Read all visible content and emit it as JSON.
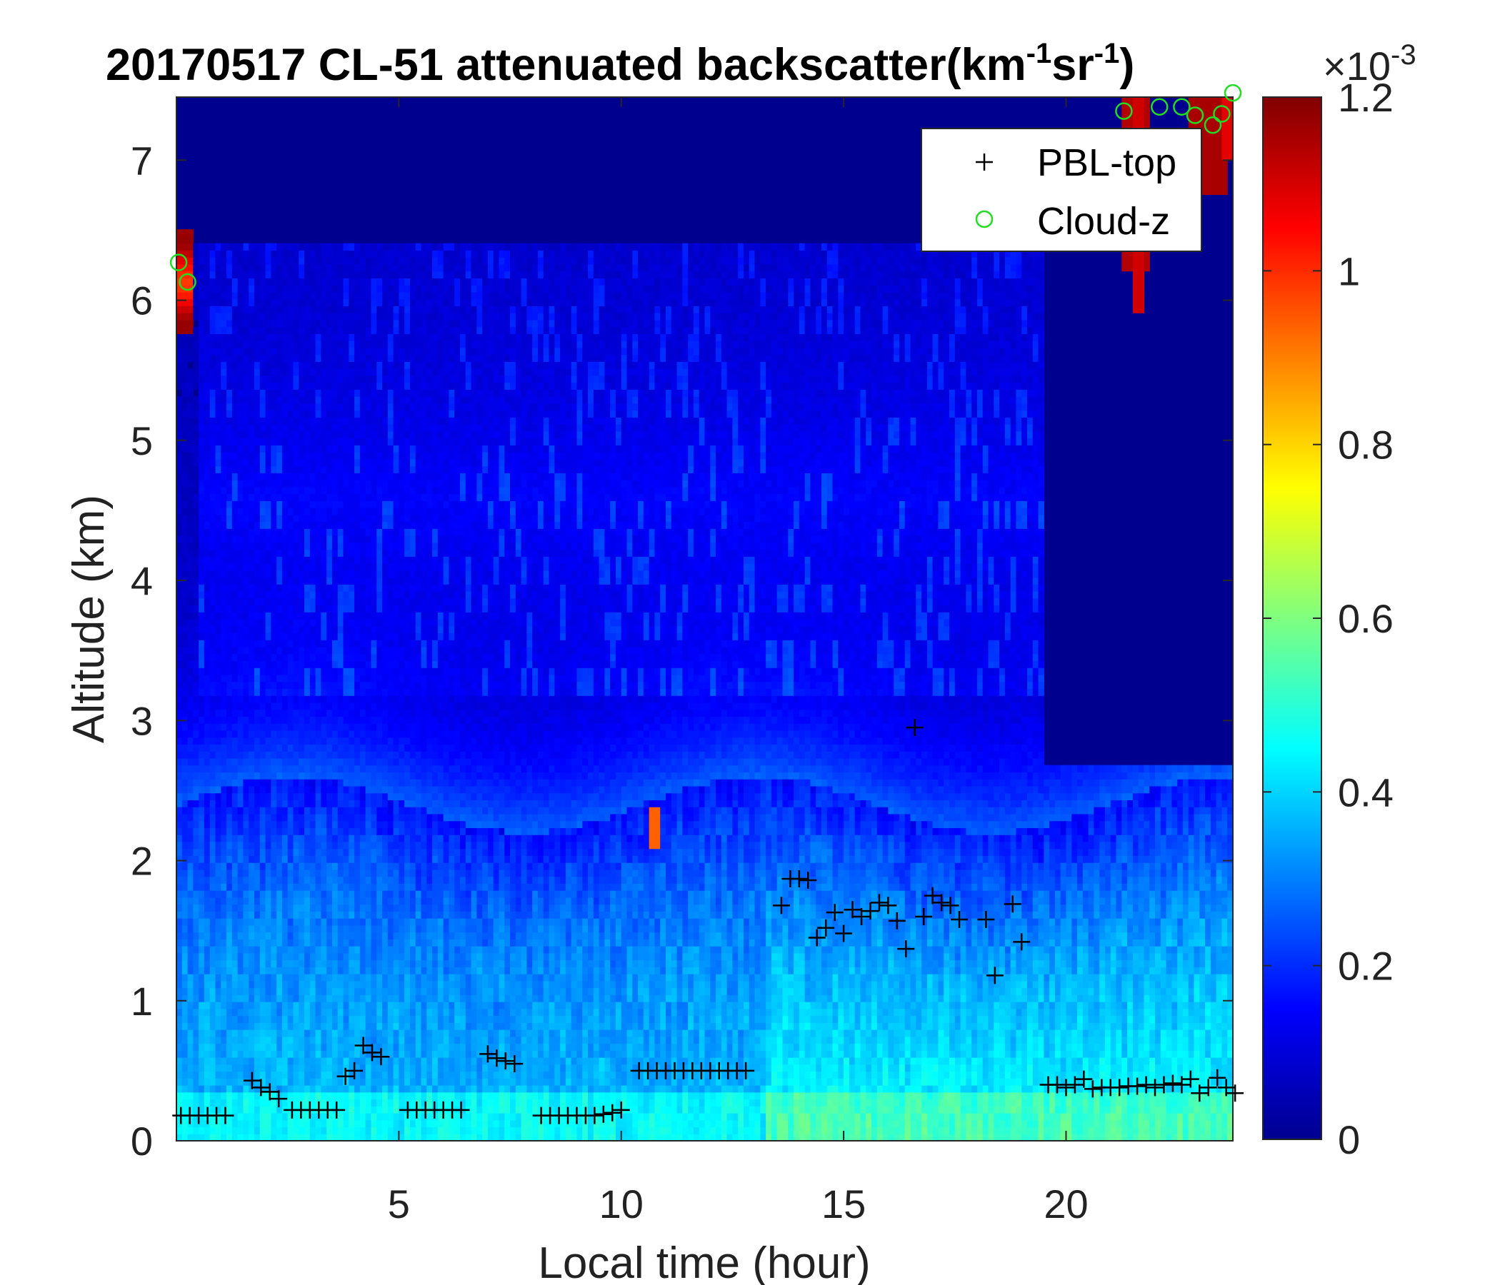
{
  "chart_data": {
    "type": "heatmap",
    "title": {
      "main": "20170517  CL-51 attenuated backscatter(km",
      "sup1": "-1",
      "mid": "sr",
      "sup2": "-1",
      "end": ")"
    },
    "xlabel": "Local time (hour)",
    "ylabel": "Altitude (km)",
    "xlim": [
      0,
      23.75
    ],
    "ylim": [
      0,
      7.45
    ],
    "xticks": [
      5,
      10,
      15,
      20
    ],
    "yticks": [
      0,
      1,
      2,
      3,
      4,
      5,
      6,
      7
    ],
    "colorbar": {
      "colormap": "jet",
      "clim": [
        0,
        1.2
      ],
      "ticks": [
        0,
        0.2,
        0.4,
        0.6,
        0.8,
        1,
        1.2
      ],
      "tick_labels": [
        "0",
        "0.2",
        "0.4",
        "0.6",
        "0.8",
        "1",
        "1.2"
      ],
      "exponent_prefix": "×10",
      "exponent": "-3"
    },
    "legend": {
      "position": "top-right",
      "entries": [
        {
          "label": "PBL-top",
          "marker": "+",
          "color": "#000000"
        },
        {
          "label": "Cloud-z",
          "marker": "o",
          "color": "#22dd22"
        }
      ]
    },
    "series": [
      {
        "name": "PBL-top",
        "marker": "+",
        "color": "#000000",
        "x": [
          0.1,
          0.3,
          0.5,
          0.7,
          0.9,
          1.1,
          1.7,
          1.9,
          2.1,
          2.3,
          2.6,
          2.8,
          3.0,
          3.2,
          3.4,
          3.6,
          3.8,
          4.0,
          4.2,
          4.4,
          4.6,
          5.2,
          5.4,
          5.6,
          5.8,
          6.0,
          6.2,
          6.4,
          7.0,
          7.2,
          7.4,
          7.6,
          8.2,
          8.4,
          8.6,
          8.8,
          9.0,
          9.2,
          9.4,
          9.6,
          9.8,
          10.0,
          10.4,
          10.6,
          10.8,
          11.0,
          11.2,
          11.4,
          11.6,
          11.8,
          12.0,
          12.2,
          12.4,
          12.6,
          12.8,
          13.6,
          13.8,
          14.0,
          14.2,
          14.4,
          14.6,
          14.8,
          15.0,
          15.2,
          15.4,
          15.6,
          15.8,
          16.0,
          16.2,
          16.4,
          16.6,
          16.8,
          17.0,
          17.2,
          17.4,
          17.6,
          18.2,
          18.4,
          18.8,
          19.0,
          19.6,
          19.8,
          20.0,
          20.2,
          20.4,
          20.6,
          20.8,
          21.0,
          21.2,
          21.4,
          21.6,
          21.8,
          22.0,
          22.2,
          22.4,
          22.6,
          22.8,
          23.0,
          23.2,
          23.4,
          23.6,
          23.8
        ],
        "y": [
          0.18,
          0.18,
          0.18,
          0.18,
          0.18,
          0.18,
          0.43,
          0.38,
          0.35,
          0.3,
          0.22,
          0.22,
          0.22,
          0.22,
          0.22,
          0.22,
          0.46,
          0.5,
          0.68,
          0.63,
          0.6,
          0.22,
          0.22,
          0.22,
          0.22,
          0.22,
          0.22,
          0.22,
          0.62,
          0.59,
          0.57,
          0.55,
          0.18,
          0.18,
          0.18,
          0.18,
          0.18,
          0.18,
          0.18,
          0.19,
          0.2,
          0.22,
          0.5,
          0.5,
          0.5,
          0.5,
          0.5,
          0.5,
          0.5,
          0.5,
          0.5,
          0.5,
          0.5,
          0.5,
          0.5,
          1.68,
          1.87,
          1.87,
          1.86,
          1.45,
          1.52,
          1.63,
          1.48,
          1.65,
          1.6,
          1.64,
          1.7,
          1.68,
          1.57,
          1.37,
          2.95,
          1.6,
          1.75,
          1.7,
          1.68,
          1.58,
          1.58,
          1.18,
          1.69,
          1.42,
          0.4,
          0.4,
          0.38,
          0.4,
          0.44,
          0.37,
          0.38,
          0.38,
          0.38,
          0.39,
          0.39,
          0.4,
          0.38,
          0.4,
          0.41,
          0.4,
          0.44,
          0.34,
          0.38,
          0.45,
          0.38,
          0.34
        ]
      },
      {
        "name": "Cloud-z",
        "marker": "o",
        "color": "#22dd22",
        "x": [
          0.05,
          0.25,
          21.3,
          22.1,
          22.6,
          22.9,
          23.3,
          23.5,
          23.75
        ],
        "y": [
          6.27,
          6.13,
          7.35,
          7.38,
          7.38,
          7.32,
          7.25,
          7.33,
          7.48
        ]
      }
    ]
  }
}
